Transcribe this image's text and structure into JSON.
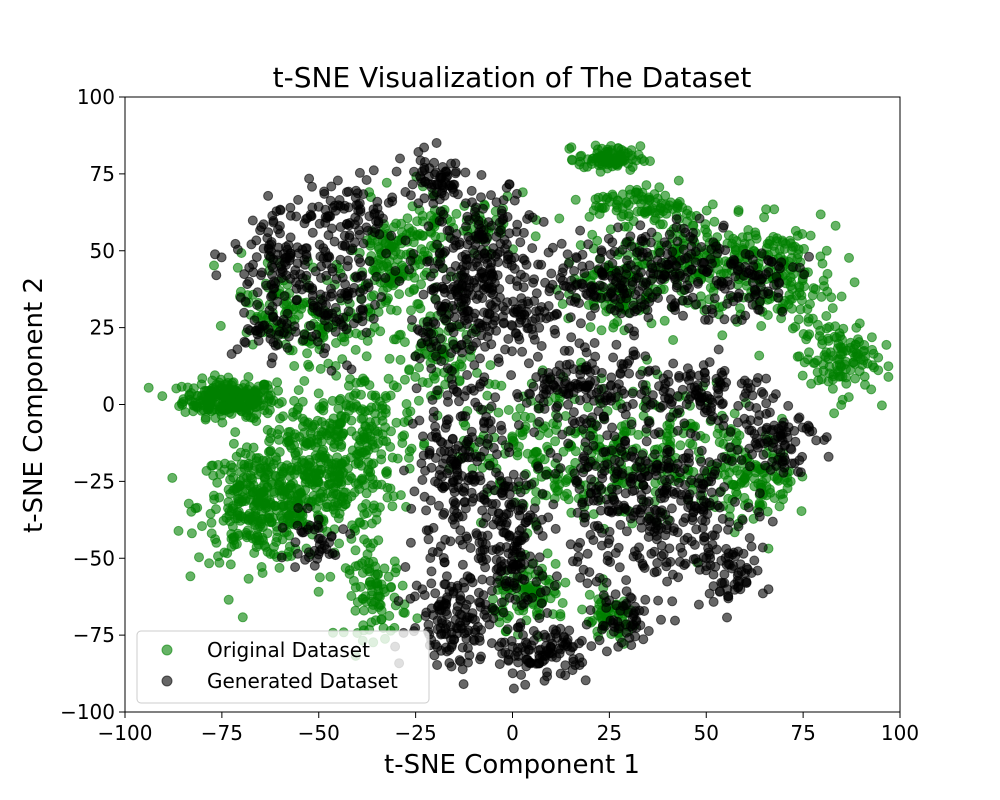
{
  "chart_data": {
    "type": "scatter",
    "title": "t-SNE Visualization of The Dataset",
    "xlabel": "t-SNE Component 1",
    "ylabel": "t-SNE Component 2",
    "xlim": [
      -100,
      100
    ],
    "ylim": [
      -100,
      100
    ],
    "xticks": [
      "−100",
      "−75",
      "−50",
      "−25",
      "0",
      "25",
      "50",
      "75",
      "100"
    ],
    "yticks": [
      "−100",
      "−75",
      "−50",
      "−25",
      "0",
      "25",
      "50",
      "75",
      "100"
    ],
    "xtick_values": [
      -100,
      -75,
      -50,
      -25,
      0,
      25,
      50,
      75,
      100
    ],
    "ytick_values": [
      -100,
      -75,
      -50,
      -25,
      0,
      25,
      50,
      75,
      100
    ],
    "grid": false,
    "legend_position": "lower-left",
    "series": [
      {
        "name": "Original Dataset",
        "color": "#008000",
        "alpha": 0.6,
        "clusters": [
          {
            "cx": -73,
            "cy": 2,
            "sx": 6,
            "sy": 3,
            "n": 260
          },
          {
            "cx": -65,
            "cy": -33,
            "sx": 8,
            "sy": 9,
            "n": 330
          },
          {
            "cx": -48,
            "cy": -22,
            "sx": 9,
            "sy": 12,
            "n": 330
          },
          {
            "cx": -40,
            "cy": -5,
            "sx": 8,
            "sy": 8,
            "n": 120
          },
          {
            "cx": -35,
            "cy": -62,
            "sx": 4,
            "sy": 7,
            "n": 90
          },
          {
            "cx": -30,
            "cy": 45,
            "sx": 6,
            "sy": 10,
            "n": 180
          },
          {
            "cx": -50,
            "cy": 25,
            "sx": 7,
            "sy": 6,
            "n": 90
          },
          {
            "cx": -62,
            "cy": 35,
            "sx": 5,
            "sy": 8,
            "n": 60
          },
          {
            "cx": -20,
            "cy": 15,
            "sx": 5,
            "sy": 8,
            "n": 80
          },
          {
            "cx": 25,
            "cy": 80,
            "sx": 4,
            "sy": 2,
            "n": 90
          },
          {
            "cx": 32,
            "cy": 65,
            "sx": 6,
            "sy": 3,
            "n": 80
          },
          {
            "cx": 50,
            "cy": 48,
            "sx": 14,
            "sy": 10,
            "n": 260
          },
          {
            "cx": 70,
            "cy": 40,
            "sx": 6,
            "sy": 8,
            "n": 110
          },
          {
            "cx": 84,
            "cy": 15,
            "sx": 5,
            "sy": 6,
            "n": 120
          },
          {
            "cx": 25,
            "cy": 38,
            "sx": 6,
            "sy": 6,
            "n": 80
          },
          {
            "cx": 10,
            "cy": -15,
            "sx": 12,
            "sy": 12,
            "n": 200
          },
          {
            "cx": 40,
            "cy": -15,
            "sx": 12,
            "sy": 12,
            "n": 180
          },
          {
            "cx": 63,
            "cy": -25,
            "sx": 5,
            "sy": 7,
            "n": 100
          },
          {
            "cx": 5,
            "cy": -62,
            "sx": 5,
            "sy": 5,
            "n": 90
          },
          {
            "cx": 25,
            "cy": -70,
            "sx": 4,
            "sy": 4,
            "n": 60
          },
          {
            "cx": -12,
            "cy": 58,
            "sx": 8,
            "sy": 5,
            "n": 60
          }
        ]
      },
      {
        "name": "Generated Dataset",
        "color": "#000000",
        "alpha": 0.6,
        "clusters": [
          {
            "cx": -60,
            "cy": 50,
            "sx": 6,
            "sy": 7,
            "n": 110
          },
          {
            "cx": -62,
            "cy": 25,
            "sx": 5,
            "sy": 5,
            "n": 50
          },
          {
            "cx": -45,
            "cy": 35,
            "sx": 7,
            "sy": 10,
            "n": 110
          },
          {
            "cx": -42,
            "cy": 62,
            "sx": 6,
            "sy": 6,
            "n": 80
          },
          {
            "cx": -20,
            "cy": 72,
            "sx": 4,
            "sy": 5,
            "n": 70
          },
          {
            "cx": -15,
            "cy": 30,
            "sx": 5,
            "sy": 14,
            "n": 140
          },
          {
            "cx": -5,
            "cy": 45,
            "sx": 6,
            "sy": 12,
            "n": 190
          },
          {
            "cx": 5,
            "cy": 28,
            "sx": 4,
            "sy": 4,
            "n": 40
          },
          {
            "cx": 25,
            "cy": 40,
            "sx": 9,
            "sy": 7,
            "n": 130
          },
          {
            "cx": 42,
            "cy": 45,
            "sx": 8,
            "sy": 8,
            "n": 120
          },
          {
            "cx": 62,
            "cy": 40,
            "sx": 6,
            "sy": 6,
            "n": 70
          },
          {
            "cx": -15,
            "cy": -25,
            "sx": 6,
            "sy": 14,
            "n": 190
          },
          {
            "cx": -15,
            "cy": -70,
            "sx": 6,
            "sy": 8,
            "n": 130
          },
          {
            "cx": 0,
            "cy": -45,
            "sx": 5,
            "sy": 14,
            "n": 170
          },
          {
            "cx": 8,
            "cy": -80,
            "sx": 6,
            "sy": 4,
            "n": 110
          },
          {
            "cx": 18,
            "cy": 5,
            "sx": 10,
            "sy": 6,
            "n": 150
          },
          {
            "cx": 28,
            "cy": -30,
            "sx": 10,
            "sy": 14,
            "n": 210
          },
          {
            "cx": 50,
            "cy": 5,
            "sx": 8,
            "sy": 5,
            "n": 100
          },
          {
            "cx": 45,
            "cy": -35,
            "sx": 9,
            "sy": 12,
            "n": 170
          },
          {
            "cx": 55,
            "cy": -55,
            "sx": 5,
            "sy": 5,
            "n": 60
          },
          {
            "cx": 68,
            "cy": -10,
            "sx": 5,
            "sy": 6,
            "n": 90
          },
          {
            "cx": 28,
            "cy": -70,
            "sx": 4,
            "sy": 5,
            "n": 50
          },
          {
            "cx": -52,
            "cy": -45,
            "sx": 5,
            "sy": 5,
            "n": 40
          }
        ]
      }
    ]
  }
}
